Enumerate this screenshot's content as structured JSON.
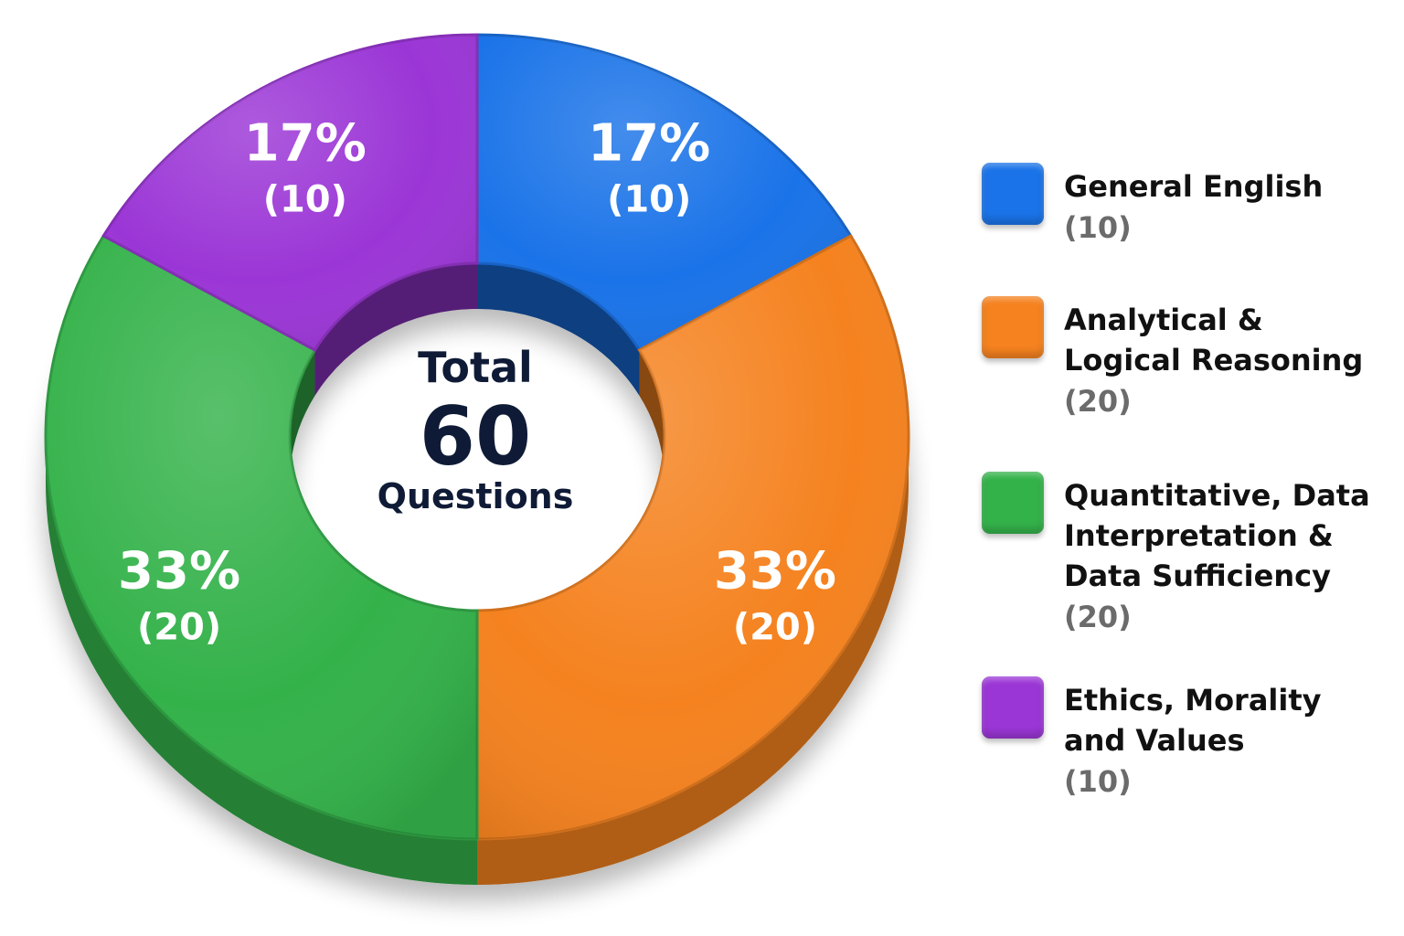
{
  "chart_data": {
    "type": "pie",
    "style": "donut",
    "center": {
      "line1": "Total",
      "line2": "60",
      "line3": "Questions"
    },
    "slices": [
      {
        "name": "General English",
        "legend_label": "General English",
        "value": 10,
        "percent_label": "17%",
        "count_label": "(10)",
        "color": "#1a73e8"
      },
      {
        "name": "Analytical & Logical Reasoning",
        "legend_label": "Analytical &\nLogical Reasoning",
        "value": 20,
        "percent_label": "33%",
        "count_label": "(20)",
        "color": "#f5821f"
      },
      {
        "name": "Quantitative, Data Interpretation & Data Sufficiency",
        "legend_label": "Quantitative, Data\nInterpretation &\nData Sufficiency",
        "value": 20,
        "percent_label": "33%",
        "count_label": "(20)",
        "color": "#34b24a"
      },
      {
        "name": "Ethics, Morality and Values",
        "legend_label": "Ethics, Morality\nand Values",
        "value": 10,
        "percent_label": "17%",
        "count_label": "(10)",
        "color": "#9b36d6"
      }
    ],
    "legend_position": "right"
  }
}
